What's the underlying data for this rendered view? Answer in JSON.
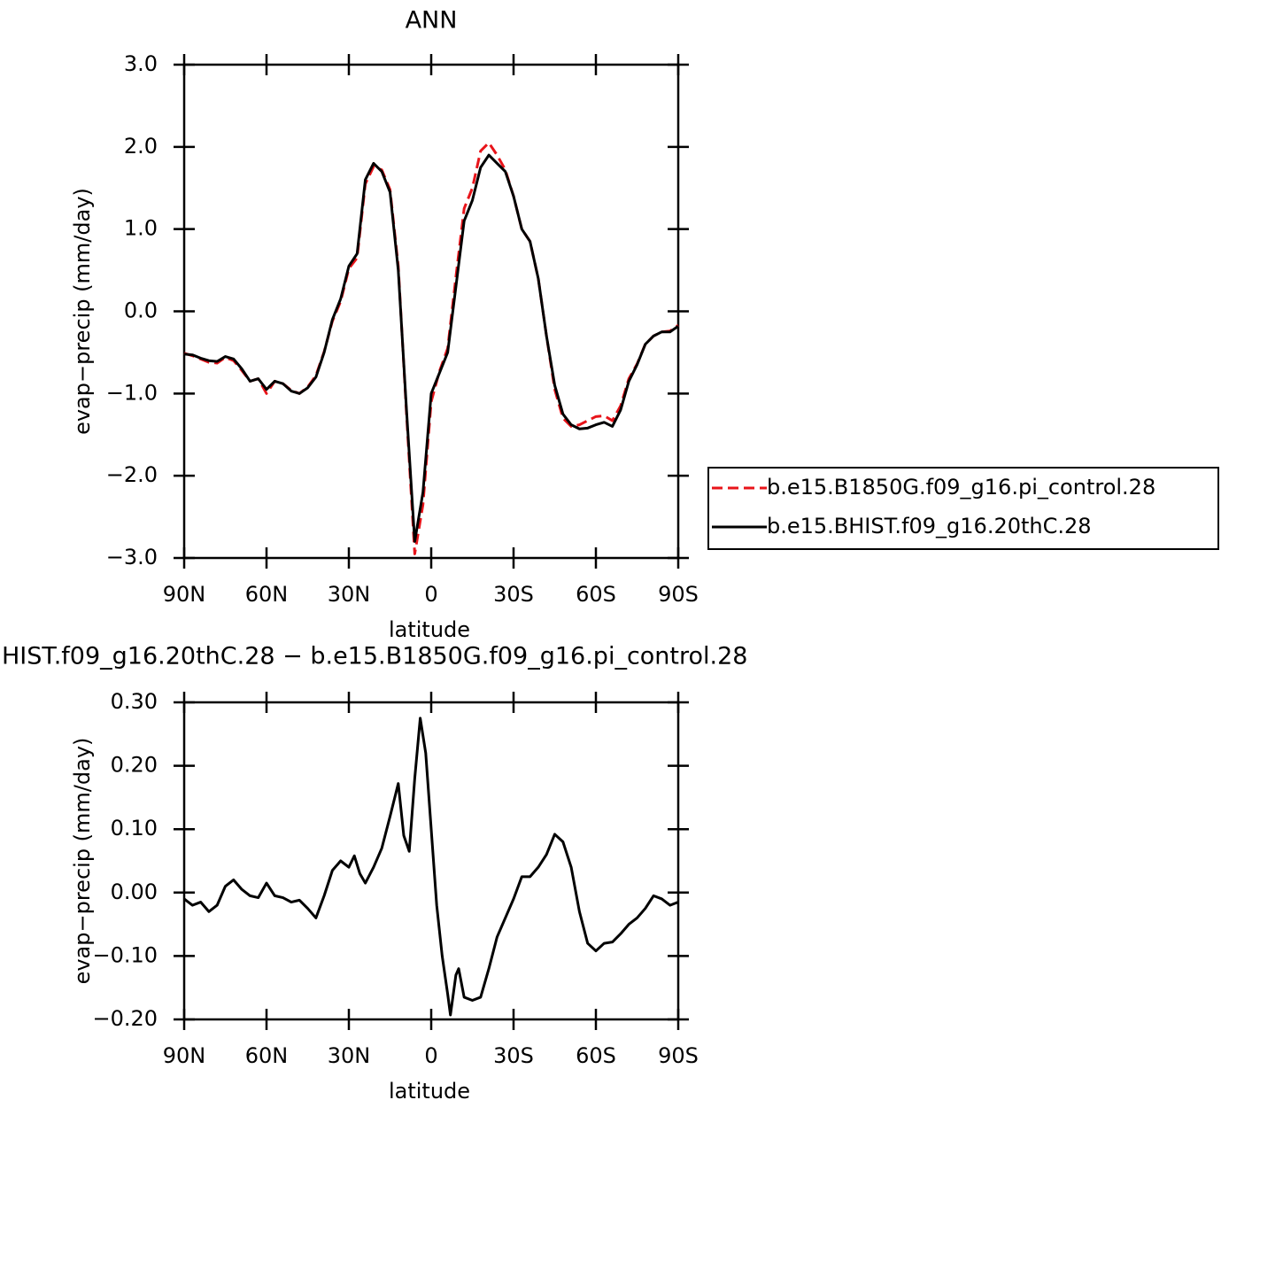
{
  "chart_data": [
    {
      "type": "line",
      "title": "ANN",
      "x_label": "latitude",
      "y_label": "evap−precip (mm/day)",
      "x": [
        90,
        87,
        84,
        81,
        78,
        75,
        72,
        69,
        66,
        63,
        60,
        57,
        54,
        51,
        48,
        45,
        42,
        39,
        36,
        33,
        30,
        27,
        24,
        21,
        18,
        15,
        12,
        9,
        6,
        3,
        0,
        -3,
        -6,
        -9,
        -12,
        -15,
        -18,
        -21,
        -24,
        -27,
        -30,
        -33,
        -36,
        -39,
        -42,
        -45,
        -48,
        -51,
        -54,
        -57,
        -60,
        -63,
        -66,
        -69,
        -72,
        -75,
        -78,
        -81,
        -84,
        -87,
        -90
      ],
      "series": [
        {
          "name": "b.e15.B1850G.f09_g16.pi_control.28",
          "color": "#e8141a",
          "dash": true,
          "values": [
            -0.51,
            -0.54,
            -0.58,
            -0.62,
            -0.63,
            -0.56,
            -0.6,
            -0.72,
            -0.85,
            -0.82,
            -1.0,
            -0.85,
            -0.88,
            -0.96,
            -1.0,
            -0.92,
            -0.78,
            -0.49,
            -0.12,
            0.12,
            0.52,
            0.65,
            1.55,
            1.76,
            1.72,
            1.48,
            0.55,
            -1.25,
            -2.95,
            -2.35,
            -1.1,
            -0.73,
            -0.45,
            0.42,
            1.25,
            1.5,
            1.95,
            2.05,
            1.9,
            1.72,
            1.4,
            1.0,
            0.85,
            0.4,
            -0.3,
            -0.95,
            -1.3,
            -1.4,
            -1.38,
            -1.33,
            -1.28,
            -1.27,
            -1.33,
            -1.15,
            -0.82,
            -0.64,
            -0.4,
            -0.3,
            -0.25,
            -0.24,
            -0.17
          ]
        },
        {
          "name": "b.e15.BHIST.f09_g16.20thC.28",
          "color": "#000000",
          "dash": false,
          "values": [
            -0.52,
            -0.53,
            -0.57,
            -0.6,
            -0.61,
            -0.55,
            -0.58,
            -0.7,
            -0.85,
            -0.82,
            -0.95,
            -0.85,
            -0.88,
            -0.97,
            -1.0,
            -0.93,
            -0.8,
            -0.5,
            -0.1,
            0.15,
            0.55,
            0.7,
            1.6,
            1.8,
            1.7,
            1.45,
            0.5,
            -1.2,
            -2.8,
            -2.2,
            -1.0,
            -0.75,
            -0.5,
            0.3,
            1.1,
            1.35,
            1.75,
            1.9,
            1.8,
            1.7,
            1.4,
            1.0,
            0.85,
            0.4,
            -0.3,
            -0.9,
            -1.25,
            -1.38,
            -1.43,
            -1.42,
            -1.38,
            -1.35,
            -1.4,
            -1.2,
            -0.85,
            -0.65,
            -0.4,
            -0.3,
            -0.25,
            -0.25,
            -0.18
          ]
        }
      ],
      "xlim": [
        90,
        -90
      ],
      "xticks": [
        {
          "value": 90,
          "label": "90N"
        },
        {
          "value": 60,
          "label": "60N"
        },
        {
          "value": 30,
          "label": "30N"
        },
        0,
        {
          "value": -30,
          "label": "30S"
        },
        {
          "value": -60,
          "label": "60S"
        },
        {
          "value": -90,
          "label": "90S"
        }
      ],
      "ylim": [
        -3,
        3
      ],
      "yticks": [
        {
          "value": 3,
          "label": "3.0"
        },
        {
          "value": 2,
          "label": "2.0"
        },
        {
          "value": 1,
          "label": "1.0"
        },
        {
          "value": 0,
          "label": "0.0"
        },
        {
          "value": -1,
          "label": "−1.0"
        },
        {
          "value": -2,
          "label": "−2.0"
        },
        {
          "value": -3,
          "label": "−3.0"
        }
      ],
      "grid": false,
      "legend": "right"
    },
    {
      "type": "line",
      "title": "HIST.f09_g16.20thC.28 − b.e15.B1850G.f09_g16.pi_control.28",
      "x_label": "latitude",
      "y_label": "evap−precip (mm/day)",
      "x": [
        90,
        87,
        84,
        81,
        78,
        75,
        72,
        69,
        66,
        63,
        60,
        57,
        54,
        51,
        48,
        45,
        42,
        39,
        36,
        33,
        30,
        28,
        26,
        24,
        21,
        18,
        15,
        12,
        10,
        8,
        6,
        4,
        2,
        0,
        -2,
        -4,
        -6,
        -7,
        -9,
        -10,
        -12,
        -15,
        -18,
        -21,
        -24,
        -27,
        -30,
        -33,
        -36,
        -39,
        -42,
        -45,
        -48,
        -51,
        -54,
        -57,
        -60,
        -63,
        -66,
        -69,
        -72,
        -75,
        -78,
        -81,
        -84,
        -87,
        -90
      ],
      "series": [
        {
          "color": "#000000",
          "dash": false,
          "values": [
            -0.01,
            -0.02,
            -0.015,
            -0.03,
            -0.02,
            0.01,
            0.02,
            0.005,
            -0.005,
            -0.008,
            0.015,
            -0.005,
            -0.008,
            -0.015,
            -0.012,
            -0.025,
            -0.04,
            -0.005,
            0.035,
            0.05,
            0.04,
            0.058,
            0.03,
            0.015,
            0.04,
            0.07,
            0.12,
            0.172,
            0.09,
            0.065,
            0.18,
            0.275,
            0.22,
            0.1,
            -0.02,
            -0.1,
            -0.16,
            -0.193,
            -0.13,
            -0.12,
            -0.165,
            -0.17,
            -0.165,
            -0.12,
            -0.07,
            -0.04,
            -0.01,
            0.025,
            0.025,
            0.04,
            0.06,
            0.092,
            0.08,
            0.04,
            -0.03,
            -0.08,
            -0.092,
            -0.08,
            -0.078,
            -0.065,
            -0.05,
            -0.04,
            -0.025,
            -0.005,
            -0.01,
            -0.02,
            -0.015
          ]
        }
      ],
      "xlim": [
        90,
        -90
      ],
      "xticks": [
        {
          "value": 90,
          "label": "90N"
        },
        {
          "value": 60,
          "label": "60N"
        },
        {
          "value": 30,
          "label": "30N"
        },
        0,
        {
          "value": -30,
          "label": "30S"
        },
        {
          "value": -60,
          "label": "60S"
        },
        {
          "value": -90,
          "label": "90S"
        }
      ],
      "ylim": [
        -0.2,
        0.3
      ],
      "yticks": [
        {
          "value": 0.3,
          "label": "0.30"
        },
        {
          "value": 0.2,
          "label": "0.20"
        },
        {
          "value": 0.1,
          "label": "0.10"
        },
        {
          "value": 0,
          "label": "0.00"
        },
        {
          "value": -0.1,
          "label": "−0.10"
        },
        {
          "value": -0.2,
          "label": "−0.20"
        }
      ],
      "grid": false
    }
  ]
}
